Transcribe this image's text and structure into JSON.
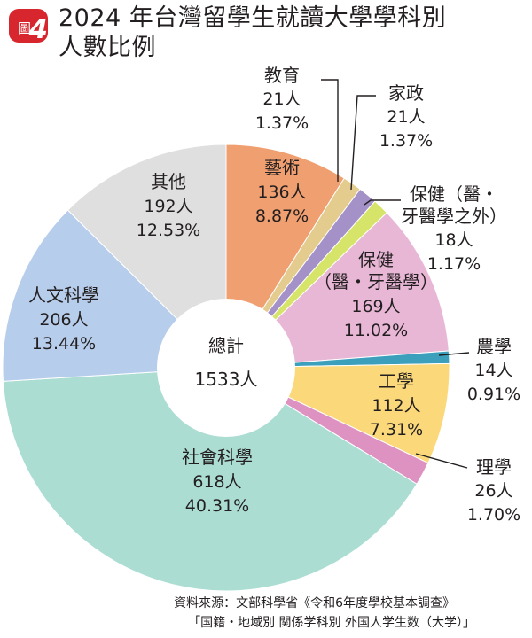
{
  "figure_label": "圖",
  "figure_number": "4",
  "title_line1": "2024 年台灣留學生就讀大學學科別",
  "title_line2": "人數比例",
  "source_line1": "資料來源：文部科學省《令和6年度學校基本調查》",
  "source_line2": "「国籍・地域別 関係学科別 外国人学生数（大学）」",
  "colors": {
    "badge": "#d7262e",
    "leader": "#231f20",
    "center": "#ffffff"
  },
  "chart_data": {
    "type": "pie",
    "style": "donut",
    "center_label": "總計",
    "center_value": "1533人",
    "total": 1533,
    "start": "12 o'clock, clockwise",
    "slices": [
      {
        "name": "藝術",
        "count": "136人",
        "percent": "8.87%",
        "value": 8.87,
        "color": "#f0a070",
        "label": "inside"
      },
      {
        "name": "教育",
        "count": "21人",
        "percent": "1.37%",
        "value": 1.37,
        "color": "#e3cc8e",
        "label": "outside"
      },
      {
        "name": "家政",
        "count": "21人",
        "percent": "1.37%",
        "value": 1.37,
        "color": "#a391c8",
        "label": "outside"
      },
      {
        "name": "保健（醫・牙醫學之外）",
        "count": "18人",
        "percent": "1.17%",
        "value": 1.17,
        "color": "#d6e46a",
        "label": "outside",
        "name_lines": [
          "保健（醫・",
          "牙醫學之外）"
        ]
      },
      {
        "name": "保健（醫・牙醫學）",
        "count": "169人",
        "percent": "11.02%",
        "value": 11.02,
        "color": "#e9b7d6",
        "label": "inside",
        "name_lines": [
          "保健",
          "（醫・牙醫學）"
        ]
      },
      {
        "name": "農學",
        "count": "14人",
        "percent": "0.91%",
        "value": 0.91,
        "color": "#3c9fbc",
        "label": "outside"
      },
      {
        "name": "工學",
        "count": "112人",
        "percent": "7.31%",
        "value": 7.31,
        "color": "#fbd97a",
        "label": "inside"
      },
      {
        "name": "理學",
        "count": "26人",
        "percent": "1.70%",
        "value": 1.7,
        "color": "#dd92c2",
        "label": "outside"
      },
      {
        "name": "社會科學",
        "count": "618人",
        "percent": "40.31%",
        "value": 40.31,
        "color": "#acddd3",
        "label": "inside"
      },
      {
        "name": "人文科學",
        "count": "206人",
        "percent": "13.44%",
        "value": 13.44,
        "color": "#b7cdec",
        "label": "inside"
      },
      {
        "name": "其他",
        "count": "192人",
        "percent": "12.53%",
        "value": 12.53,
        "color": "#dfdfdf",
        "label": "inside"
      }
    ]
  }
}
